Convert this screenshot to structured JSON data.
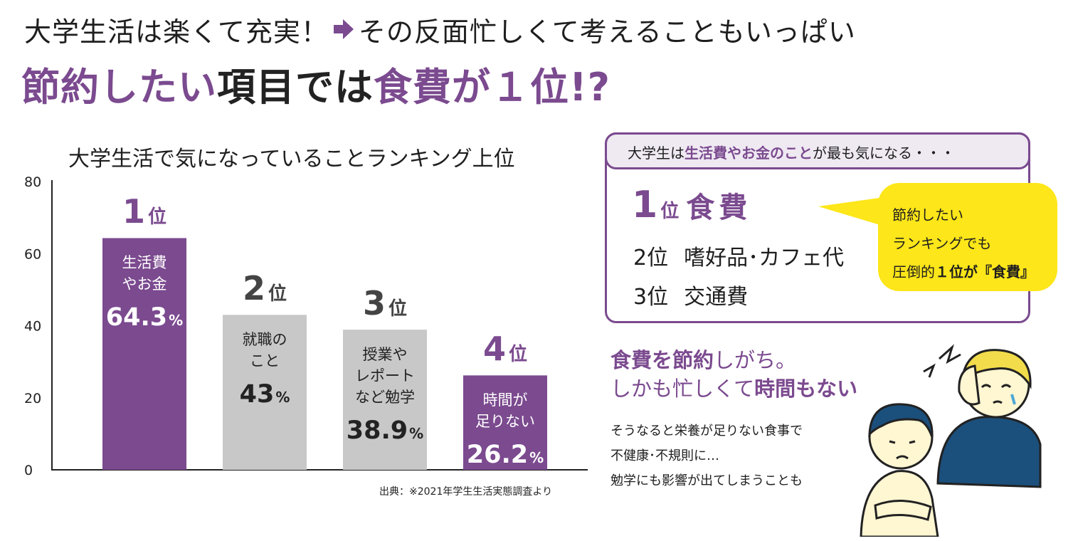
{
  "headline": {
    "line1_a": "大学生活は楽くて充実！",
    "line1_b": "その反面忙しくて考えることもいっぱい",
    "line2_part1": "節約したい",
    "line2_part2": "項目では",
    "line2_part3": "食費が",
    "line2_part4": "１位!?"
  },
  "chart_data": {
    "type": "bar",
    "title": "大学生活で気になっていることランキング上位",
    "ylim": [
      0,
      80
    ],
    "yticks": [
      "0",
      "20",
      "40",
      "60",
      "80"
    ],
    "categories": [
      "生活費\nやお金",
      "就職の\nこと",
      "授業や\nレポート\nなど勉学",
      "時間が\n足りない"
    ],
    "values": [
      64.3,
      43,
      38.9,
      26.2
    ],
    "value_labels": [
      "64.3",
      "43",
      "38.9",
      "26.2"
    ],
    "percent_sign": "%",
    "ranks": [
      "1",
      "2",
      "3",
      "4"
    ],
    "rank_suffix": "位",
    "grid": false,
    "colors": {
      "highlight": "#7b4a8f",
      "normal": "#c8c8c8"
    },
    "highlight": [
      true,
      false,
      false,
      true
    ],
    "source": "出典：※2021年学生生活実態調査より"
  },
  "info_box": {
    "header_a": "大学生は",
    "header_b": "生活費やお金のこと",
    "header_c": "が最も気になる・・・",
    "rank_suffix": "位",
    "ranking": [
      {
        "rank": "1",
        "item": "食費"
      },
      {
        "rank": "2",
        "item": "嗜好品･カフェ代"
      },
      {
        "rank": "3",
        "item": "交通費"
      }
    ]
  },
  "bubble": {
    "line1": "節約したい",
    "line2": "ランキングでも",
    "line3_a": "圧倒的",
    "line3_b": "１位が『食費』"
  },
  "sub": {
    "line1_a": "食費を節約",
    "line1_b": "しがち。",
    "line2_a": "しかも忙しくて",
    "line2_b": "時間もない",
    "body1": "そうなると栄養が足りない食事で",
    "body2": "不健康･不規則に…",
    "body3": "勉学にも影響が出てしまうことも"
  },
  "colors": {
    "accent": "#7b4a8f",
    "bubble": "#fde619",
    "header_bg": "#efe9f2"
  }
}
